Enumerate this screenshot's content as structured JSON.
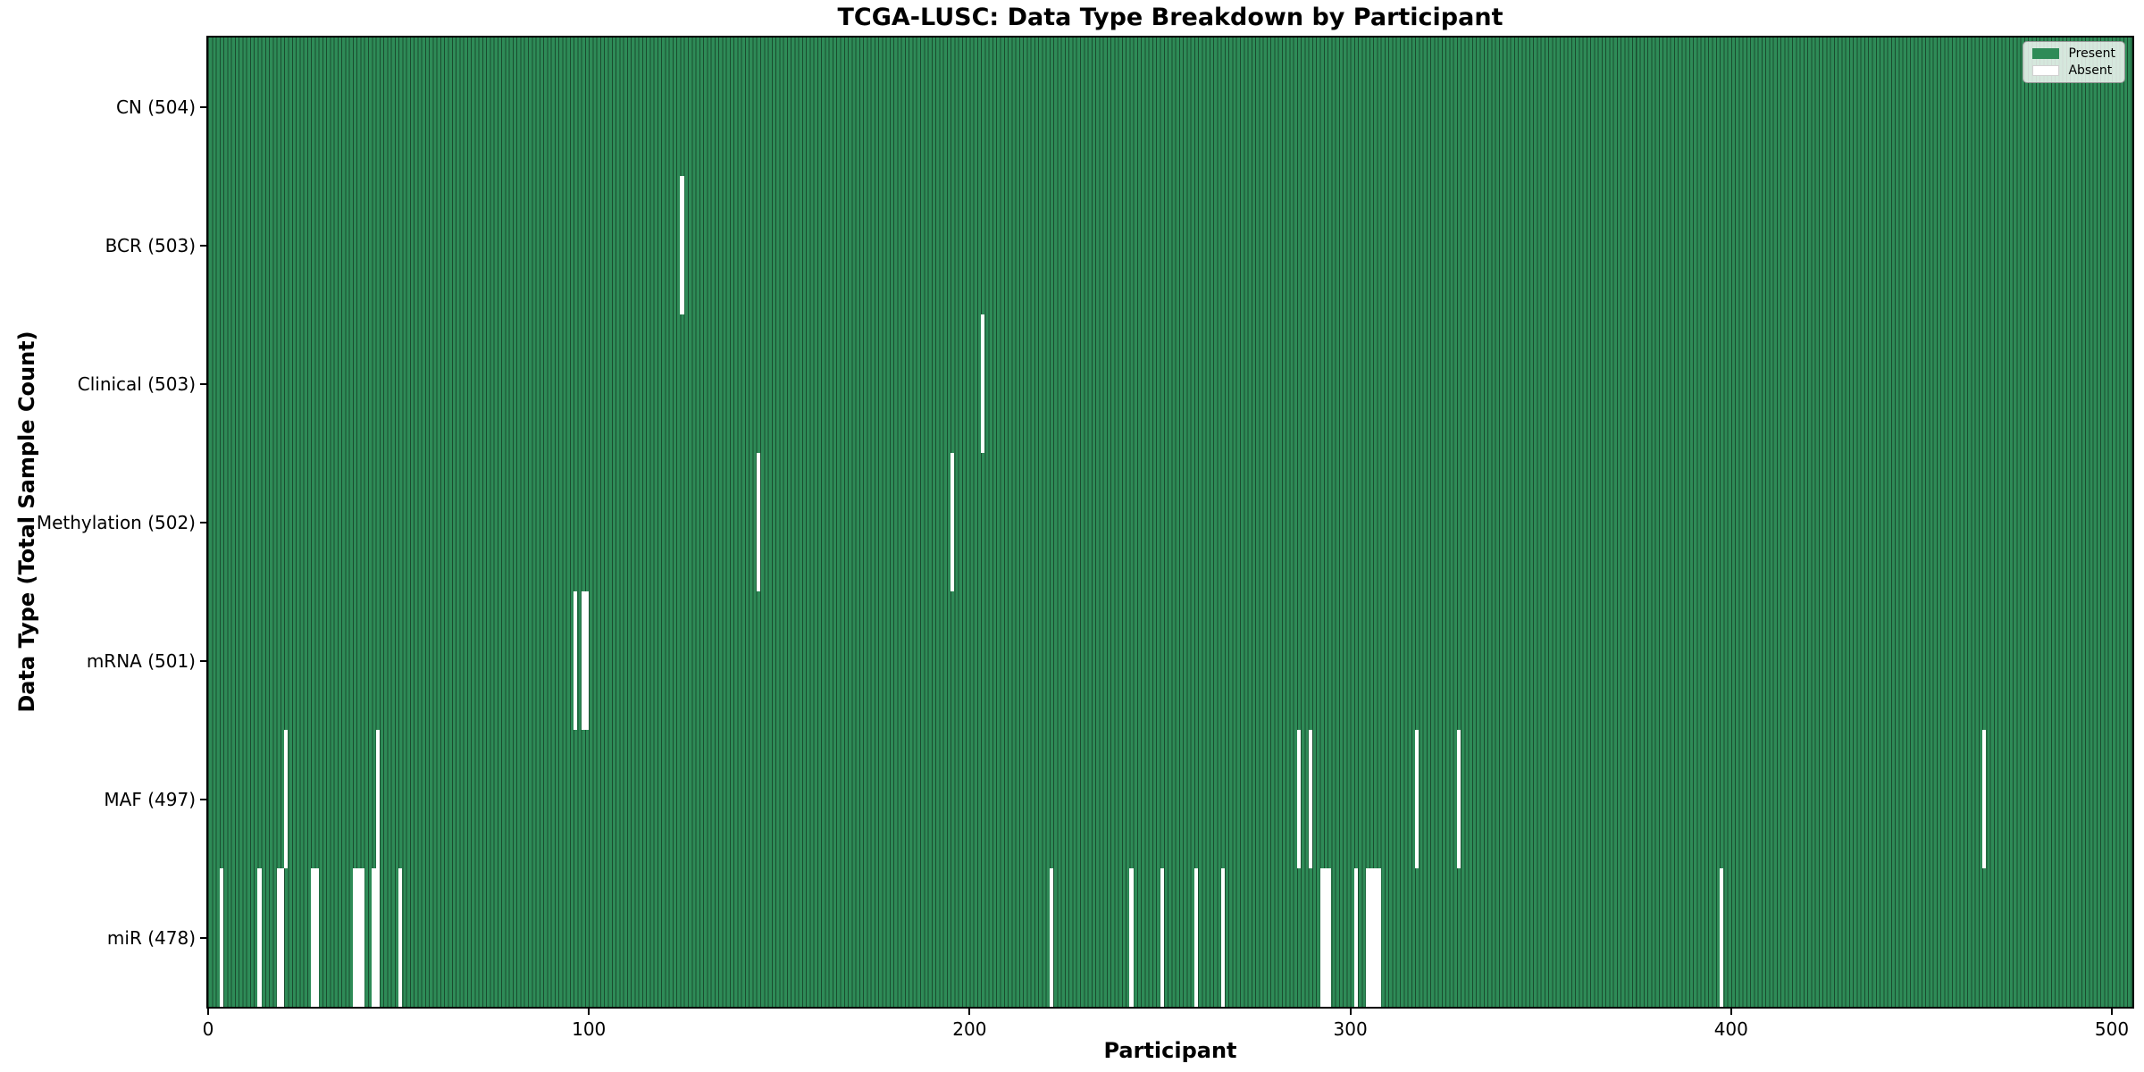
{
  "chart_data": {
    "type": "heatmap",
    "title": "TCGA-LUSC: Data Type Breakdown by Participant",
    "xlabel": "Participant",
    "ylabel": "Data Type (Total Sample Count)",
    "x_ticks": [
      0,
      100,
      200,
      300,
      400,
      500
    ],
    "x_range": [
      0,
      505
    ],
    "n_participants": 504,
    "grid": false,
    "legend_position": "upper right",
    "legend": [
      {
        "label": "Present",
        "color": "#2e8b57"
      },
      {
        "label": "Absent",
        "color": "#ffffff"
      }
    ],
    "rows": [
      {
        "label": "CN (504)",
        "data_type": "CN",
        "total": 504,
        "absent": []
      },
      {
        "label": "BCR (503)",
        "data_type": "BCR",
        "total": 503,
        "absent": [
          124
        ]
      },
      {
        "label": "Clinical (503)",
        "data_type": "Clinical",
        "total": 503,
        "absent": [
          203
        ]
      },
      {
        "label": "Methylation (502)",
        "data_type": "Methylation",
        "total": 502,
        "absent": [
          144,
          195
        ]
      },
      {
        "label": "mRNA (501)",
        "data_type": "mRNA",
        "total": 501,
        "absent": [
          96,
          98,
          99
        ]
      },
      {
        "label": "MAF (497)",
        "data_type": "MAF",
        "total": 497,
        "absent": [
          20,
          44,
          286,
          289,
          317,
          328,
          466
        ]
      },
      {
        "label": "miR (478)",
        "data_type": "miR",
        "total": 478,
        "absent": [
          3,
          13,
          18,
          19,
          27,
          28,
          38,
          39,
          40,
          43,
          44,
          50,
          221,
          242,
          250,
          259,
          266,
          292,
          293,
          294,
          301,
          304,
          305,
          306,
          307,
          397
        ]
      }
    ],
    "colors": {
      "present": "#2e8b57",
      "absent": "#ffffff",
      "bar_edge": "#1a4c2f",
      "row_divider": "#0d0d0d",
      "axis": "#000000"
    }
  }
}
